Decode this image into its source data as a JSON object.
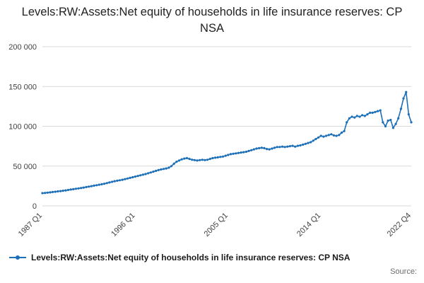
{
  "title": "Levels:RW:Assets:Net equity of households in life insurance reserves: CP NSA",
  "legend": {
    "label": "Levels:RW:Assets:Net equity of households in life insurance reserves: CP NSA"
  },
  "source_label": "Source:",
  "colors": {
    "line": "#1d70b8",
    "grid": "#d9d9d9",
    "axis_text": "#414042",
    "title_text": "#222222"
  },
  "chart_data": {
    "type": "line",
    "title": "Levels:RW:Assets:Net equity of households in life insurance reserves: CP NSA",
    "xlabel": "",
    "ylabel": "",
    "frequency": "quarterly",
    "x_start": "1987 Q1",
    "x_end": "2022 Q4",
    "ylim": [
      0,
      200000
    ],
    "grid": true,
    "legend_position": "bottom-left",
    "yticks": [
      {
        "value": 0,
        "label": "0"
      },
      {
        "value": 50000,
        "label": "50 000"
      },
      {
        "value": 100000,
        "label": "100 000"
      },
      {
        "value": 150000,
        "label": "150 000"
      },
      {
        "value": 200000,
        "label": "200 000"
      }
    ],
    "xticks": [
      {
        "index": 0,
        "label": "1987 Q1"
      },
      {
        "index": 36,
        "label": "1996 Q1"
      },
      {
        "index": 72,
        "label": "2005 Q1"
      },
      {
        "index": 108,
        "label": "2014 Q1"
      },
      {
        "index": 143,
        "label": "2022 Q4"
      }
    ],
    "values": [
      16000,
      16300,
      16600,
      17000,
      17400,
      17800,
      18200,
      18600,
      19000,
      19500,
      20000,
      20500,
      21000,
      21500,
      22000,
      22500,
      23000,
      23600,
      24200,
      24800,
      25400,
      26000,
      26600,
      27200,
      27800,
      28600,
      29400,
      30200,
      31000,
      31600,
      32200,
      32800,
      33600,
      34400,
      35200,
      36000,
      36800,
      37600,
      38400,
      39200,
      40000,
      41000,
      42000,
      43000,
      44000,
      45000,
      45800,
      46400,
      47000,
      48000,
      50000,
      53000,
      55500,
      57000,
      58500,
      59500,
      60000,
      59000,
      58000,
      57500,
      57000,
      57500,
      58000,
      57500,
      58000,
      59000,
      60000,
      60500,
      61000,
      61500,
      62000,
      63000,
      64000,
      65000,
      65500,
      66000,
      66500,
      67000,
      67500,
      68000,
      69000,
      70000,
      71000,
      72000,
      72500,
      73000,
      72500,
      71500,
      71000,
      72000,
      73000,
      74000,
      74000,
      74500,
      74000,
      74500,
      75000,
      75500,
      74500,
      75500,
      76000,
      77000,
      78000,
      79000,
      80000,
      82000,
      84000,
      86000,
      88000,
      87000,
      88000,
      89000,
      90000,
      88500,
      88000,
      89000,
      92000,
      94000,
      105000,
      110000,
      112000,
      111000,
      113000,
      112000,
      114000,
      113000,
      115000,
      117000,
      117000,
      118000,
      119000,
      120000,
      105000,
      100000,
      107000,
      108000,
      98000,
      103000,
      110000,
      122000,
      135000,
      143000,
      115000,
      105000
    ]
  }
}
